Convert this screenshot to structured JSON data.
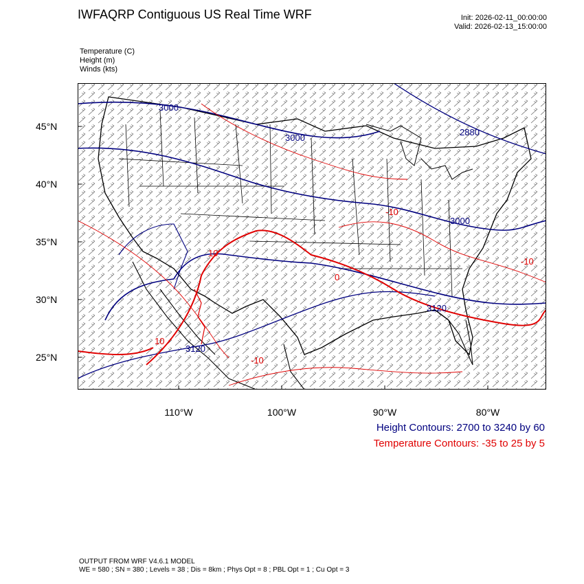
{
  "header": {
    "title": "IWFAQRP Contiguous US Real Time WRF",
    "init": "Init: 2026-02-11_00:00:00",
    "valid": "Valid: 2026-02-13_15:00:00"
  },
  "variables": {
    "temperature": "Temperature   (C)",
    "height": "Height   (m)",
    "winds": "Winds   (kts)"
  },
  "axes": {
    "lat_labels": [
      "45°N",
      "40°N",
      "35°N",
      "30°N",
      "25°N"
    ],
    "lon_labels": [
      "110°W",
      "100°W",
      "90°W",
      "80°W"
    ]
  },
  "contour_labels": {
    "height": [
      "3000",
      "3000",
      "2880",
      "3000",
      "3120",
      "3120"
    ],
    "temperature": [
      "-10",
      "-10",
      "-10",
      "0",
      "10",
      "10"
    ]
  },
  "legend": {
    "height_contours": "Height Contours: 2700 to 3240 by 60",
    "temperature_contours": "Temperature Contours: -35 to 25 by 5"
  },
  "footer": {
    "line1": "OUTPUT FROM WRF V4.6.1 MODEL",
    "line2": "WE = 580 ; SN = 380 ; Levels = 38 ; Dis = 8km ; Phys Opt = 8 ; PBL Opt = 1 ; Cu Opt = 3"
  },
  "colors": {
    "height": "#00007f",
    "temperature": "#e00000",
    "boundaries": "#000000"
  }
}
